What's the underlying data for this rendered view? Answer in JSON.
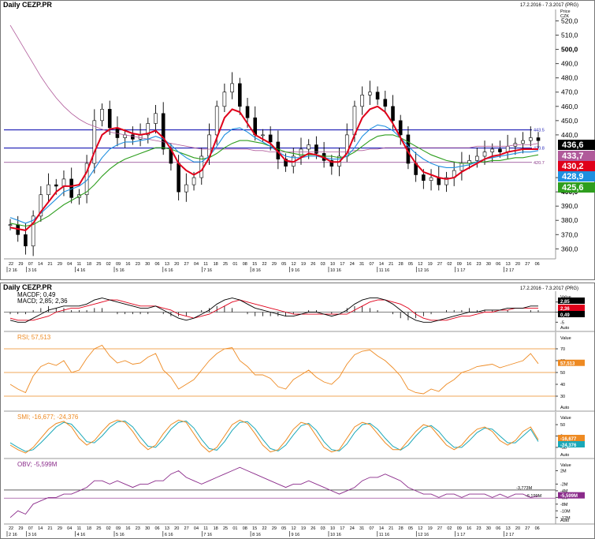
{
  "header": {
    "title": "Daily CEZP.PR",
    "range": "17.2.2016 - 7.3.2017 (PRG)",
    "axis_label": "Price",
    "currency": "CZK"
  },
  "lower_header": {
    "title": "Daily CEZP.PR",
    "range": "17.2.2016 - 7.3.2017 (PRG)"
  },
  "colors": {
    "price_bars": "#000000",
    "ma_red": "#e0001a",
    "ma_blue": "#1e8fe0",
    "ma_green": "#2e9e1e",
    "ma_purple": "#b05a9a",
    "level_line": "#1a1ab4",
    "level_purple": "#8a3a8a",
    "macd": "#000000",
    "macd_signal": "#e0001a",
    "rsi": "#ee8a22",
    "smi_k": "#ee8a22",
    "smi_d": "#1aa8b8",
    "obv": "#8a2a8a"
  },
  "chart_data": [
    {
      "type": "candlestick",
      "title": "Daily CEZP.PR",
      "ylabel": "Price CZK",
      "ylim": [
        353,
        528
      ],
      "y_ticks": [
        "520,0",
        "510,0",
        "500,0",
        "490,0",
        "480,0",
        "470,0",
        "460,0",
        "450,0",
        "440,0",
        "410,0",
        "400,0",
        "390,0",
        "380,0",
        "370,0",
        "360,0"
      ],
      "y_tick_values": [
        520,
        510,
        500,
        490,
        480,
        470,
        460,
        450,
        440,
        410,
        400,
        390,
        380,
        370,
        360
      ],
      "bold_ticks": [
        500,
        400
      ],
      "x_day_labels": [
        "22",
        "29",
        "07",
        "14",
        "21",
        "29",
        "04",
        "11",
        "18",
        "25",
        "02",
        "09",
        "16",
        "23",
        "30",
        "06",
        "13",
        "20",
        "27",
        "04",
        "11",
        "18",
        "25",
        "01",
        "08",
        "15",
        "22",
        "29",
        "05",
        "12",
        "19",
        "26",
        "03",
        "10",
        "17",
        "24",
        "31",
        "07",
        "14",
        "21",
        "28",
        "05",
        "12",
        "19",
        "27",
        "02",
        "09",
        "16",
        "23",
        "30",
        "06",
        "13",
        "20",
        "27",
        "06"
      ],
      "x_month_labels": [
        {
          "label": "2 16",
          "index": 0
        },
        {
          "label": "3 16",
          "index": 2
        },
        {
          "label": "4 16",
          "index": 7
        },
        {
          "label": "5 16",
          "index": 11
        },
        {
          "label": "6 16",
          "index": 16
        },
        {
          "label": "7 16",
          "index": 20
        },
        {
          "label": "8 16",
          "index": 25
        },
        {
          "label": "9 16",
          "index": 29
        },
        {
          "label": "10 16",
          "index": 33
        },
        {
          "label": "11 16",
          "index": 38
        },
        {
          "label": "12 16",
          "index": 42
        },
        {
          "label": "1 17",
          "index": 46
        },
        {
          "label": "2 17",
          "index": 51
        }
      ],
      "levels": [
        {
          "value": 443.5,
          "label": "443.5"
        },
        {
          "value": 430.8,
          "label": "430.8"
        },
        {
          "value": 420.7,
          "label": "420.7"
        }
      ],
      "last_values": [
        {
          "name": "close",
          "value": "436,6",
          "color": "#000000"
        },
        {
          "name": "ma_purple",
          "value": "433,7",
          "color": "#b05a9a"
        },
        {
          "name": "ma_red",
          "value": "430,2",
          "color": "#e0001a"
        },
        {
          "name": "ma_blue",
          "value": "428,9",
          "color": "#1e8fe0"
        },
        {
          "name": "ma_green",
          "value": "425,6",
          "color": "#2e9e1e"
        }
      ],
      "close": [
        377,
        370,
        362,
        383,
        398,
        405,
        404,
        409,
        396,
        398,
        420,
        450,
        458,
        445,
        438,
        440,
        437,
        440,
        448,
        455,
        430,
        420,
        400,
        405,
        410,
        425,
        440,
        460,
        470,
        476,
        460,
        452,
        440,
        440,
        435,
        423,
        418,
        425,
        430,
        433,
        427,
        422,
        418,
        425,
        440,
        460,
        468,
        470,
        465,
        460,
        450,
        440,
        420,
        412,
        408,
        410,
        405,
        410,
        415,
        420,
        422,
        425,
        428,
        430,
        428,
        432,
        434,
        436,
        438,
        436
      ],
      "ma_red": [
        375,
        374,
        373,
        378,
        386,
        393,
        400,
        404,
        404,
        405,
        414,
        428,
        440,
        444,
        445,
        443,
        441,
        440,
        441,
        443,
        438,
        430,
        420,
        415,
        412,
        415,
        424,
        438,
        452,
        458,
        456,
        448,
        440,
        437,
        434,
        428,
        422,
        421,
        424,
        427,
        426,
        424,
        421,
        421,
        427,
        440,
        452,
        458,
        460,
        456,
        448,
        438,
        428,
        420,
        414,
        412,
        410,
        409,
        410,
        414,
        417,
        420,
        423,
        425,
        426,
        428,
        429,
        430,
        430,
        430
      ],
      "ma_blue": [
        382,
        380,
        378,
        380,
        385,
        390,
        395,
        400,
        402,
        404,
        408,
        416,
        424,
        430,
        433,
        435,
        435,
        436,
        437,
        439,
        437,
        433,
        428,
        424,
        421,
        421,
        425,
        432,
        440,
        444,
        445,
        442,
        438,
        435,
        432,
        428,
        425,
        424,
        424,
        425,
        425,
        424,
        423,
        423,
        425,
        431,
        439,
        444,
        447,
        446,
        443,
        438,
        432,
        427,
        423,
        420,
        418,
        417,
        417,
        418,
        419,
        421,
        423,
        424,
        425,
        426,
        427,
        428,
        428,
        429
      ],
      "ma_green": [
        378,
        377,
        376,
        377,
        380,
        383,
        387,
        391,
        394,
        397,
        400,
        405,
        411,
        416,
        420,
        423,
        425,
        427,
        429,
        431,
        431,
        430,
        428,
        426,
        424,
        423,
        424,
        427,
        431,
        434,
        436,
        436,
        435,
        434,
        432,
        430,
        428,
        427,
        426,
        426,
        426,
        425,
        425,
        424,
        425,
        428,
        432,
        436,
        439,
        440,
        440,
        438,
        435,
        432,
        429,
        426,
        424,
        422,
        421,
        420,
        420,
        421,
        421,
        422,
        422,
        423,
        424,
        424,
        425,
        426
      ],
      "ma_purple": [
        517,
        508,
        499,
        490,
        481,
        473,
        466,
        460,
        455,
        451,
        448,
        446,
        444,
        442,
        441,
        440,
        439,
        438,
        437,
        436,
        435,
        434,
        433,
        432,
        431,
        430,
        430,
        430,
        430,
        430,
        430,
        430,
        429,
        429,
        428,
        428,
        428,
        428,
        428,
        428,
        428,
        428,
        428,
        428,
        428,
        429,
        429,
        430,
        430,
        431,
        431,
        431,
        431,
        431,
        431,
        431,
        431,
        431,
        431,
        431,
        431,
        432,
        432,
        432,
        432,
        432,
        433,
        433,
        433,
        434
      ]
    },
    {
      "type": "line",
      "title": "MACDF; 0,49",
      "subtitle": "MACD; 2,85; 2,36",
      "axis_label": "Value",
      "badges": [
        {
          "value": "2,85",
          "color": "#000000"
        },
        {
          "value": "2,36",
          "color": "#e0001a"
        },
        {
          "value": "0,49",
          "color": "#000000"
        }
      ],
      "y_ticks": [
        "5",
        "0",
        "-5"
      ],
      "y_tick_values": [
        5,
        0,
        -5
      ],
      "ylim": [
        -8,
        8
      ],
      "macd": [
        -4,
        -5,
        -5,
        -3,
        -1,
        1,
        2,
        3,
        3,
        3,
        4,
        6,
        7,
        6,
        5,
        4,
        3,
        2,
        2,
        3,
        1,
        -1,
        -3,
        -4,
        -3,
        -1,
        1,
        4,
        6,
        7,
        6,
        4,
        2,
        1,
        0,
        -1,
        -2,
        -2,
        -1,
        0,
        0,
        -1,
        -2,
        -1,
        1,
        4,
        6,
        7,
        7,
        6,
        4,
        1,
        -2,
        -4,
        -5,
        -5,
        -4,
        -3,
        -2,
        -1,
        0,
        0,
        1,
        1,
        1,
        2,
        2,
        2,
        3,
        3
      ],
      "signal": [
        -3,
        -4,
        -4,
        -4,
        -3,
        -2,
        0,
        1,
        2,
        2,
        3,
        4,
        5,
        6,
        6,
        5,
        4,
        3,
        3,
        3,
        2,
        1,
        -1,
        -2,
        -3,
        -2,
        -1,
        1,
        3,
        5,
        6,
        5,
        4,
        3,
        2,
        1,
        0,
        -1,
        -1,
        -1,
        -1,
        -1,
        -1,
        -1,
        -1,
        1,
        3,
        5,
        6,
        6,
        5,
        4,
        2,
        -1,
        -3,
        -4,
        -4,
        -4,
        -3,
        -2,
        -2,
        -1,
        0,
        0,
        1,
        1,
        2,
        2,
        2,
        2
      ]
    },
    {
      "type": "line",
      "title": "RSI; 57,513",
      "axis_label": "Value",
      "badge": "57,513",
      "y_ticks": [
        "70",
        "60",
        "50",
        "40",
        "30"
      ],
      "y_tick_values": [
        70,
        60,
        50,
        40,
        30
      ],
      "ylim": [
        20,
        80
      ],
      "levels": [
        70,
        50,
        30
      ],
      "values": [
        40,
        36,
        33,
        47,
        55,
        58,
        56,
        60,
        50,
        52,
        62,
        70,
        73,
        64,
        58,
        60,
        57,
        58,
        63,
        66,
        52,
        46,
        36,
        40,
        44,
        52,
        60,
        66,
        70,
        71,
        60,
        55,
        48,
        48,
        45,
        38,
        36,
        44,
        48,
        52,
        46,
        42,
        40,
        46,
        57,
        65,
        68,
        69,
        64,
        60,
        54,
        47,
        36,
        33,
        32,
        36,
        34,
        40,
        44,
        50,
        52,
        55,
        56,
        57,
        54,
        56,
        58,
        60,
        66,
        57.5
      ]
    },
    {
      "type": "line",
      "title": "SMI; -16,677; -24,376",
      "axis_label": "Value",
      "badges": [
        {
          "value": "-16,677",
          "color": "#ee8a22"
        },
        {
          "value": "-24,376",
          "color": "#1aa8b8"
        }
      ],
      "y_ticks": [
        "50",
        "0",
        "-50"
      ],
      "y_tick_values": [
        50,
        0,
        -50
      ],
      "ylim": [
        -85,
        85
      ],
      "k": [
        -40,
        -60,
        -75,
        -50,
        -10,
        30,
        55,
        65,
        40,
        -10,
        -40,
        -20,
        20,
        55,
        70,
        60,
        20,
        -30,
        -60,
        -40,
        10,
        50,
        70,
        60,
        10,
        -40,
        -70,
        -50,
        0,
        50,
        70,
        55,
        10,
        -40,
        -70,
        -60,
        -20,
        30,
        60,
        50,
        0,
        -50,
        -70,
        -60,
        -10,
        40,
        60,
        50,
        10,
        -30,
        -60,
        -60,
        -20,
        20,
        50,
        40,
        0,
        -40,
        -60,
        -40,
        0,
        30,
        40,
        20,
        -20,
        -40,
        -20,
        20,
        40,
        -16.7
      ],
      "d": [
        -30,
        -50,
        -68,
        -60,
        -30,
        5,
        40,
        60,
        52,
        15,
        -25,
        -30,
        0,
        38,
        62,
        66,
        40,
        -5,
        -45,
        -50,
        -15,
        30,
        60,
        66,
        35,
        -15,
        -55,
        -62,
        -25,
        25,
        60,
        63,
        32,
        -15,
        -55,
        -66,
        -40,
        5,
        45,
        56,
        25,
        -25,
        -60,
        -66,
        -35,
        15,
        50,
        56,
        30,
        -10,
        -45,
        -62,
        -40,
        0,
        35,
        46,
        20,
        -20,
        -50,
        -50,
        -20,
        15,
        35,
        30,
        0,
        -30,
        -30,
        0,
        30,
        -24.4
      ]
    },
    {
      "type": "line",
      "title": "OBV; -5,599M",
      "axis_label": "Value",
      "badges": [
        {
          "value": "-5,599M",
          "color": "#8a2a8a"
        }
      ],
      "y_ticks": [
        "2M",
        "-2M",
        "-4M",
        "-6M",
        "-8M",
        "-10M",
        "-12M"
      ],
      "y_tick_values": [
        2,
        -2,
        -4,
        -6,
        -8,
        -10,
        -12
      ],
      "ylim": [
        -13,
        4
      ],
      "levels": [
        {
          "value": -3.773,
          "label": "-3,773M"
        },
        {
          "value": -6.199,
          "label": "-6,199M"
        }
      ],
      "values": [
        -12,
        -10,
        -11,
        -8,
        -7,
        -6,
        -6,
        -5,
        -5,
        -4,
        -3,
        -1,
        -1,
        -2,
        -1,
        -2,
        -3,
        -2,
        -2,
        -1,
        -1,
        1,
        2,
        0,
        -1,
        -2,
        -1,
        0,
        1,
        2,
        3,
        2,
        1,
        0,
        -1,
        -2,
        -3,
        -2,
        -2,
        -1,
        -2,
        -3,
        -4,
        -5,
        -4,
        -3,
        -1,
        0,
        0,
        1,
        0,
        -1,
        -3,
        -4,
        -5,
        -5,
        -6,
        -5,
        -5,
        -6,
        -5,
        -5,
        -5,
        -6,
        -5,
        -6,
        -5,
        -5,
        -6,
        -5.6
      ]
    }
  ]
}
